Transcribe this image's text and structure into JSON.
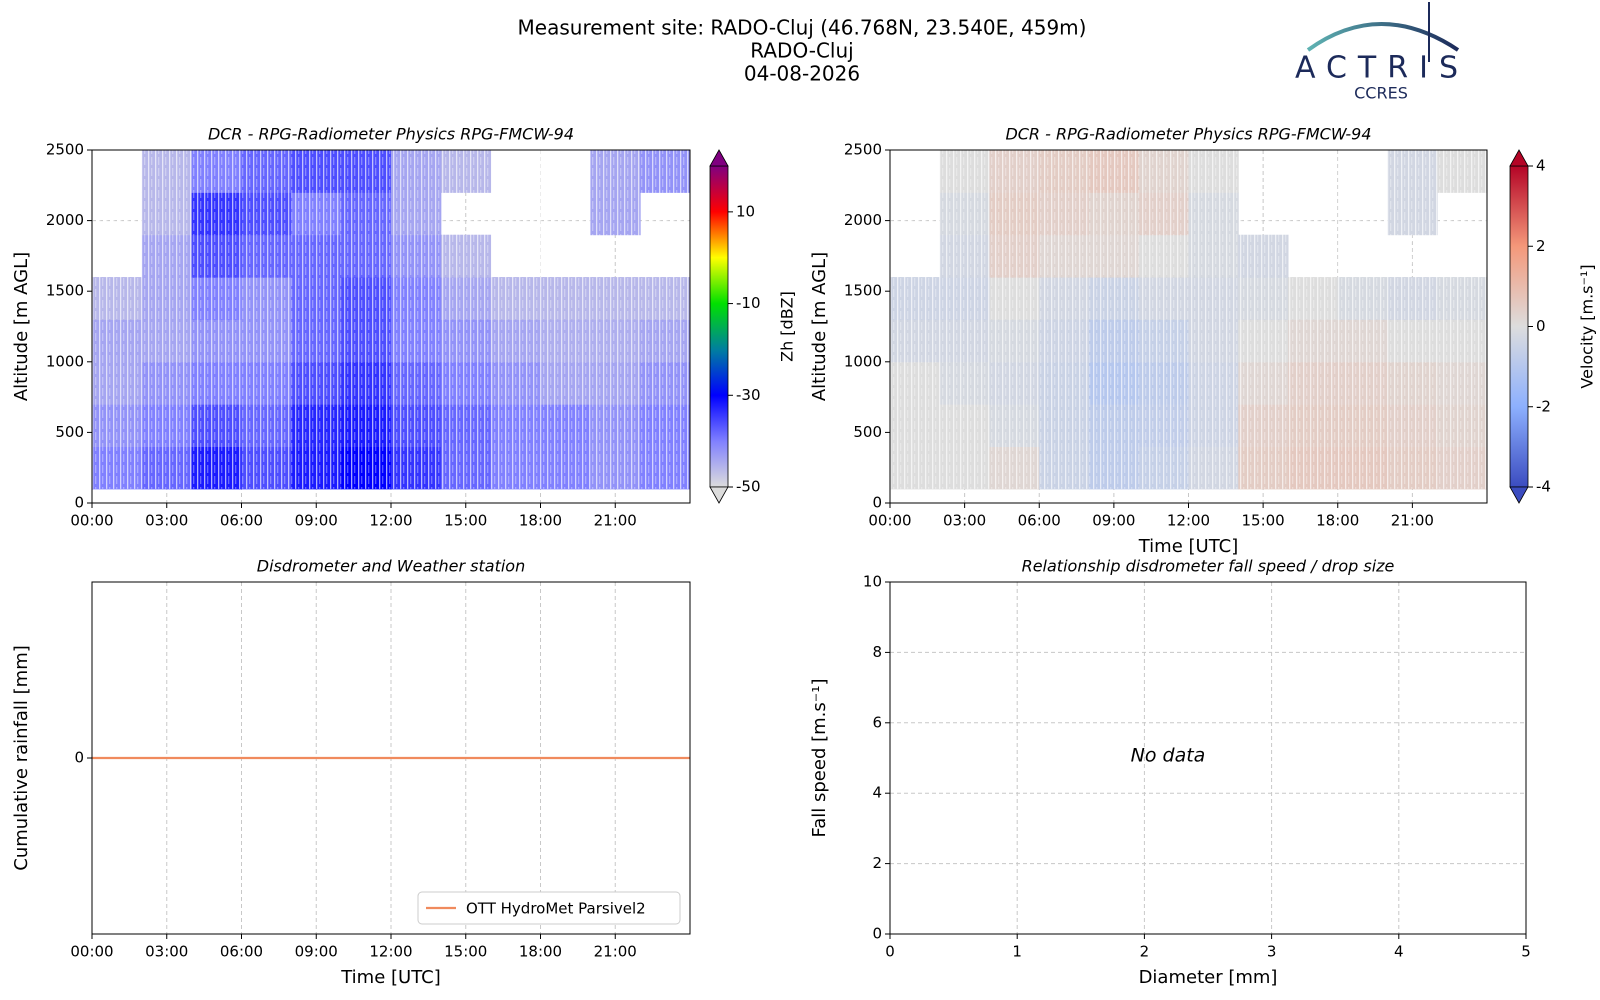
{
  "header": {
    "lines": [
      "Measurement site: RADO-Cluj (46.768N, 23.540E, 459m)",
      "RADO-Cluj",
      "04-08-2026"
    ]
  },
  "logo": {
    "name": "ACTRIS",
    "subtitle": "CCRES"
  },
  "chart_data": [
    {
      "type": "heatmap",
      "title": "DCR - RPG-Radiometer Physics RPG-FMCW-94",
      "y_label": "Altitude [m AGL]",
      "xlim": [
        0,
        24
      ],
      "xticks": [
        {
          "value": 0,
          "label": "00:00"
        },
        {
          "value": 3,
          "label": "03:00"
        },
        {
          "value": 6,
          "label": "06:00"
        },
        {
          "value": 9,
          "label": "09:00"
        },
        {
          "value": 12,
          "label": "12:00"
        },
        {
          "value": 15,
          "label": "15:00"
        },
        {
          "value": 18,
          "label": "18:00"
        },
        {
          "value": 21,
          "label": "21:00"
        }
      ],
      "ylim": [
        0,
        2500
      ],
      "yticks": [
        0,
        500,
        1000,
        1500,
        2000,
        2500
      ],
      "grid": true,
      "x_edges": [
        0,
        2,
        4,
        6,
        8,
        10,
        12,
        14,
        16,
        18,
        20,
        22,
        24
      ],
      "y_edges": [
        100,
        400,
        700,
        1000,
        1300,
        1600,
        1900,
        2200,
        2500
      ],
      "z": [
        [
          -40,
          -38,
          -32,
          -36,
          -32,
          -30,
          -34,
          -38,
          -40,
          -40,
          -42,
          -40
        ],
        [
          -42,
          -40,
          -36,
          -38,
          -33,
          -32,
          -36,
          -38,
          -40,
          -40,
          -42,
          -40
        ],
        [
          -44,
          -42,
          -40,
          -40,
          -36,
          -34,
          -38,
          -40,
          -42,
          -44,
          -44,
          -42
        ],
        [
          -44,
          -44,
          -42,
          -42,
          -38,
          -36,
          -40,
          -42,
          -44,
          -45,
          -45,
          -44
        ],
        [
          -46,
          -44,
          -40,
          -42,
          -38,
          -36,
          -40,
          -44,
          -46,
          -46,
          -46,
          -46
        ],
        [
          null,
          -44,
          -36,
          -38,
          -38,
          -38,
          -42,
          -46,
          null,
          null,
          null,
          null
        ],
        [
          null,
          -46,
          -34,
          -36,
          -40,
          -38,
          -44,
          null,
          null,
          null,
          -44,
          null
        ],
        [
          null,
          -46,
          -40,
          -38,
          -36,
          -36,
          -44,
          -46,
          null,
          null,
          -44,
          -42
        ]
      ],
      "colorbar": {
        "label": "Zh [dBZ]",
        "lim": [
          -50,
          20
        ],
        "ticks": [
          -50,
          -30,
          -10,
          10
        ],
        "colors": [
          "#dcdcdc",
          "#8080ff",
          "#0000ff",
          "#007f9f",
          "#00e000",
          "#ffff00",
          "#ff0000",
          "#800080"
        ]
      }
    },
    {
      "type": "heatmap",
      "title": "DCR - RPG-Radiometer Physics RPG-FMCW-94",
      "y_label": "Altitude [m AGL]",
      "x_label": "Time [UTC]",
      "xlim": [
        0,
        24
      ],
      "xticks": [
        {
          "value": 0,
          "label": "00:00"
        },
        {
          "value": 3,
          "label": "03:00"
        },
        {
          "value": 6,
          "label": "06:00"
        },
        {
          "value": 9,
          "label": "09:00"
        },
        {
          "value": 12,
          "label": "12:00"
        },
        {
          "value": 15,
          "label": "15:00"
        },
        {
          "value": 18,
          "label": "18:00"
        },
        {
          "value": 21,
          "label": "21:00"
        }
      ],
      "ylim": [
        0,
        2500
      ],
      "yticks": [
        0,
        500,
        1000,
        1500,
        2000,
        2500
      ],
      "grid": true,
      "x_edges": [
        0,
        2,
        4,
        6,
        8,
        10,
        12,
        14,
        16,
        18,
        20,
        22,
        24
      ],
      "y_edges": [
        100,
        400,
        700,
        1000,
        1300,
        1600,
        1900,
        2200,
        2500
      ],
      "z": [
        [
          0,
          0,
          0.2,
          -0.5,
          -0.8,
          -0.6,
          -0.3,
          0.5,
          0.6,
          0.6,
          0.5,
          0.4
        ],
        [
          0,
          0,
          -0.2,
          -0.5,
          -0.8,
          -0.7,
          -0.4,
          0.4,
          0.5,
          0.5,
          0.4,
          0.3
        ],
        [
          0,
          -0.2,
          -0.3,
          -0.5,
          -1,
          -0.8,
          -0.4,
          0.2,
          0.4,
          0.4,
          0.3,
          0.2
        ],
        [
          -0.3,
          -0.3,
          -0.2,
          -0.4,
          -0.8,
          -0.6,
          -0.3,
          0,
          0.2,
          0.2,
          0,
          0
        ],
        [
          -0.4,
          -0.4,
          0,
          -0.3,
          -0.5,
          -0.3,
          -0.3,
          -0.2,
          0,
          -0.2,
          -0.3,
          -0.2
        ],
        [
          null,
          -0.3,
          0.4,
          0.2,
          0.2,
          0,
          -0.2,
          -0.3,
          null,
          null,
          null,
          null
        ],
        [
          null,
          -0.2,
          0.5,
          0.4,
          0.3,
          0.4,
          -0.2,
          null,
          null,
          null,
          -0.3,
          null
        ],
        [
          null,
          0,
          0.4,
          0.5,
          0.6,
          0.3,
          0,
          null,
          null,
          null,
          -0.3,
          0
        ]
      ],
      "colorbar": {
        "label": "Velocity [m.s⁻¹]",
        "lim": [
          -4,
          4
        ],
        "ticks": [
          -4,
          -2,
          0,
          2,
          4
        ],
        "colors": [
          "#3b4cc0",
          "#8db0fe",
          "#dddddd",
          "#f4987a",
          "#b40426"
        ]
      }
    },
    {
      "type": "line",
      "title": "Disdrometer and Weather station",
      "y_label": "Cumulative rainfall [mm]",
      "x_label": "Time [UTC]",
      "xlim": [
        0,
        24
      ],
      "xticks": [
        {
          "value": 0,
          "label": "00:00"
        },
        {
          "value": 3,
          "label": "03:00"
        },
        {
          "value": 6,
          "label": "06:00"
        },
        {
          "value": 9,
          "label": "09:00"
        },
        {
          "value": 12,
          "label": "12:00"
        },
        {
          "value": 15,
          "label": "15:00"
        },
        {
          "value": 18,
          "label": "18:00"
        },
        {
          "value": 21,
          "label": "21:00"
        }
      ],
      "ylim": [
        -0.055,
        0.055
      ],
      "yticks": [
        0
      ],
      "grid": true,
      "legend": "lower right",
      "x": [
        0,
        24
      ],
      "series": [
        {
          "name": "OTT HydroMet Parsivel2",
          "color": "#f08a5d",
          "values": [
            0,
            0
          ]
        }
      ]
    },
    {
      "type": "scatter",
      "title": "Relationship disdrometer fall speed / drop size",
      "y_label": "Fall speed [m.s⁻¹]",
      "x_label": "Diameter [mm]",
      "xlim": [
        0,
        5
      ],
      "xticks": [
        0,
        1,
        2,
        3,
        4,
        5
      ],
      "ylim": [
        0,
        10
      ],
      "yticks": [
        0,
        2,
        4,
        6,
        8,
        10
      ],
      "grid": true,
      "x": [],
      "values": [],
      "annotation": "No data"
    }
  ]
}
